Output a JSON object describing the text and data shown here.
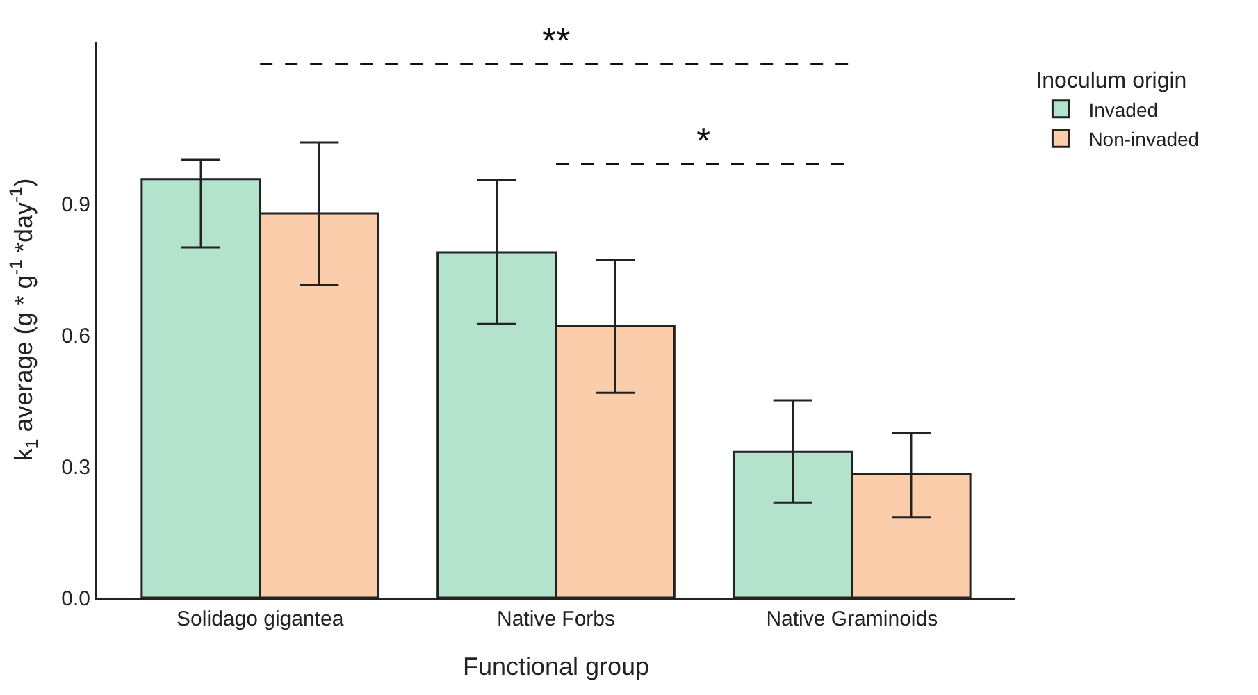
{
  "chart_data": {
    "type": "bar",
    "xlabel": "Functional group",
    "ylabel": "k$_{1}$ average (g * g$^{-1}$ *day$^{-1}$)",
    "legend_title": "Inoculum origin",
    "categories": [
      "Solidago gigantea",
      "Native Forbs",
      "Native Graminoids"
    ],
    "series": [
      {
        "name": "Invaded",
        "color": "#b3e3cd",
        "values": [
          0.956,
          0.789,
          0.333
        ],
        "errors": [
          [
            0.8,
            1.0
          ],
          [
            0.625,
            0.954
          ],
          [
            0.217,
            0.451
          ]
        ]
      },
      {
        "name": "Non-invaded",
        "color": "#fccdab",
        "values": [
          0.878,
          0.62,
          0.282
        ],
        "errors": [
          [
            0.715,
            1.04
          ],
          [
            0.468,
            0.772
          ],
          [
            0.183,
            0.377
          ]
        ]
      }
    ],
    "ylim": [
      0,
      1.27
    ],
    "yticks": [
      {
        "value": 0,
        "label": "0.0"
      },
      0.3,
      0.6,
      0.9
    ],
    "grid": false,
    "legend": "top right",
    "annotations": [
      "**",
      "*"
    ]
  }
}
